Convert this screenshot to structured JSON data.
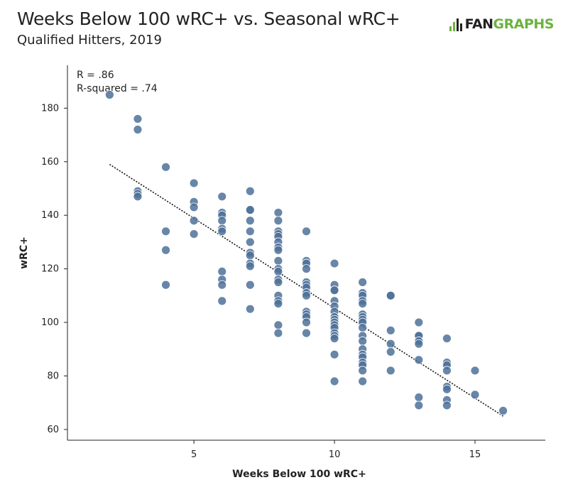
{
  "header": {
    "title": "Weeks Below 100 wRC+ vs. Seasonal wRC+",
    "subtitle": "Qualified Hitters, 2019"
  },
  "logo": {
    "part1": "FAN",
    "part2": "GRAPHS",
    "accent_color": "#6cb33f"
  },
  "chart_data": {
    "type": "scatter",
    "title": "Weeks Below 100 wRC+ vs. Seasonal wRC+",
    "subtitle": "Qualified Hitters, 2019",
    "xlabel": "Weeks Below 100 wRC+",
    "ylabel": "wRC+",
    "xlim": [
      0.5,
      17.5
    ],
    "ylim": [
      56,
      196
    ],
    "xticks": [
      5,
      10,
      15
    ],
    "yticks": [
      60,
      80,
      100,
      120,
      140,
      160,
      180
    ],
    "grid": false,
    "annotations": [
      "R = .86",
      "R-squared = .74"
    ],
    "point_color": "#4d7199",
    "trendline": {
      "style": "dotted",
      "x": [
        2,
        16
      ],
      "y": [
        159,
        65
      ]
    },
    "points": [
      [
        2,
        185
      ],
      [
        3,
        176
      ],
      [
        3,
        172
      ],
      [
        3,
        149
      ],
      [
        3,
        148
      ],
      [
        3,
        147
      ],
      [
        4,
        158
      ],
      [
        4,
        134
      ],
      [
        4,
        127
      ],
      [
        4,
        114
      ],
      [
        5,
        152
      ],
      [
        5,
        145
      ],
      [
        5,
        143
      ],
      [
        5,
        138
      ],
      [
        5,
        133
      ],
      [
        6,
        147
      ],
      [
        6,
        141
      ],
      [
        6,
        140
      ],
      [
        6,
        138
      ],
      [
        6,
        135
      ],
      [
        6,
        134
      ],
      [
        6,
        119
      ],
      [
        6,
        116
      ],
      [
        6,
        114
      ],
      [
        6,
        108
      ],
      [
        7,
        149
      ],
      [
        7,
        142
      ],
      [
        7,
        142
      ],
      [
        7,
        138
      ],
      [
        7,
        134
      ],
      [
        7,
        130
      ],
      [
        7,
        126
      ],
      [
        7,
        125
      ],
      [
        7,
        122
      ],
      [
        7,
        121
      ],
      [
        7,
        114
      ],
      [
        7,
        105
      ],
      [
        8,
        141
      ],
      [
        8,
        138
      ],
      [
        8,
        134
      ],
      [
        8,
        133
      ],
      [
        8,
        132
      ],
      [
        8,
        130
      ],
      [
        8,
        128
      ],
      [
        8,
        127
      ],
      [
        8,
        123
      ],
      [
        8,
        120
      ],
      [
        8,
        119
      ],
      [
        8,
        116
      ],
      [
        8,
        115
      ],
      [
        8,
        110
      ],
      [
        8,
        108
      ],
      [
        8,
        107
      ],
      [
        8,
        99
      ],
      [
        8,
        96
      ],
      [
        9,
        134
      ],
      [
        9,
        123
      ],
      [
        9,
        122
      ],
      [
        9,
        120
      ],
      [
        9,
        115
      ],
      [
        9,
        114
      ],
      [
        9,
        113
      ],
      [
        9,
        111
      ],
      [
        9,
        110
      ],
      [
        9,
        104
      ],
      [
        9,
        103
      ],
      [
        9,
        102
      ],
      [
        9,
        100
      ],
      [
        9,
        96
      ],
      [
        10,
        122
      ],
      [
        10,
        114
      ],
      [
        10,
        112
      ],
      [
        10,
        112
      ],
      [
        10,
        108
      ],
      [
        10,
        106
      ],
      [
        10,
        104
      ],
      [
        10,
        102
      ],
      [
        10,
        101
      ],
      [
        10,
        100
      ],
      [
        10,
        99
      ],
      [
        10,
        98
      ],
      [
        10,
        96
      ],
      [
        10,
        95
      ],
      [
        10,
        94
      ],
      [
        10,
        88
      ],
      [
        10,
        78
      ],
      [
        11,
        115
      ],
      [
        11,
        111
      ],
      [
        11,
        110
      ],
      [
        11,
        108
      ],
      [
        11,
        107
      ],
      [
        11,
        103
      ],
      [
        11,
        102
      ],
      [
        11,
        101
      ],
      [
        11,
        100
      ],
      [
        11,
        98
      ],
      [
        11,
        95
      ],
      [
        11,
        93
      ],
      [
        11,
        90
      ],
      [
        11,
        88
      ],
      [
        11,
        87
      ],
      [
        11,
        85
      ],
      [
        11,
        84
      ],
      [
        11,
        82
      ],
      [
        11,
        78
      ],
      [
        12,
        110
      ],
      [
        12,
        110
      ],
      [
        12,
        97
      ],
      [
        12,
        92
      ],
      [
        12,
        89
      ],
      [
        12,
        82
      ],
      [
        13,
        100
      ],
      [
        13,
        95
      ],
      [
        13,
        95
      ],
      [
        13,
        93
      ],
      [
        13,
        92
      ],
      [
        13,
        86
      ],
      [
        13,
        72
      ],
      [
        13,
        69
      ],
      [
        14,
        94
      ],
      [
        14,
        85
      ],
      [
        14,
        84
      ],
      [
        14,
        82
      ],
      [
        14,
        76
      ],
      [
        14,
        75
      ],
      [
        14,
        71
      ],
      [
        14,
        69
      ],
      [
        15,
        82
      ],
      [
        15,
        73
      ],
      [
        16,
        67
      ]
    ]
  }
}
